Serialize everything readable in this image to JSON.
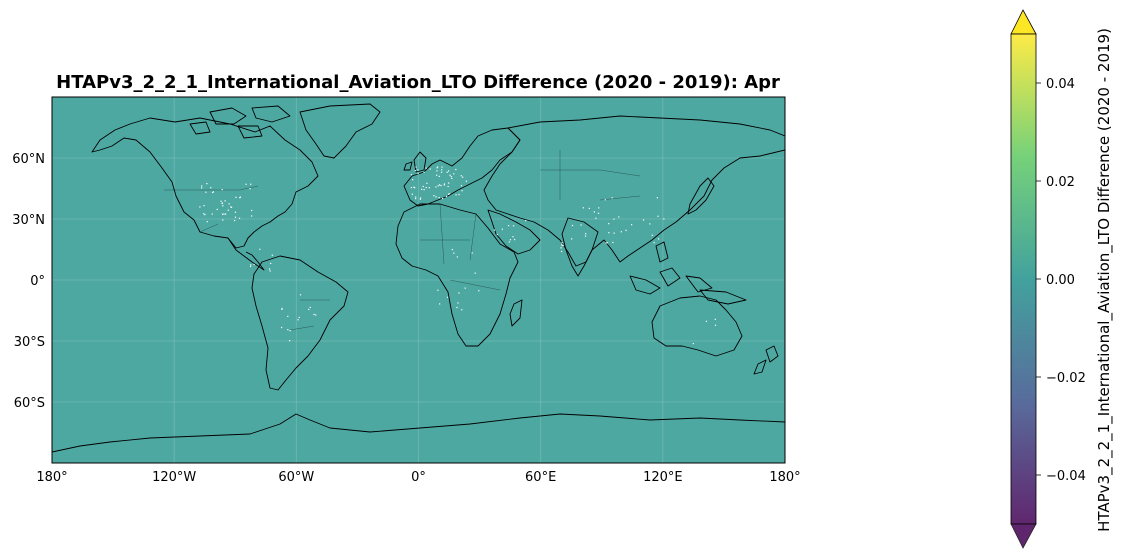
{
  "title": "HTAPv3_2_2_1_International_Aviation_LTO Difference (2020 - 2019): Apr",
  "map": {
    "projection": "PlateCarree",
    "extent": {
      "lon": [
        -180,
        180
      ],
      "lat": [
        -90,
        90
      ]
    },
    "fill_color": "#4ea8a2",
    "coastline_color": "#000000",
    "gridlines": true,
    "x_ticks": [
      "180°",
      "120°W",
      "60°W",
      "0°",
      "60°E",
      "120°E",
      "180°"
    ],
    "x_tick_values": [
      -180,
      -120,
      -60,
      0,
      60,
      120,
      180
    ],
    "y_ticks": [
      "60°N",
      "30°N",
      "0°",
      "30°S",
      "60°S"
    ],
    "y_tick_values": [
      60,
      30,
      0,
      -30,
      -60
    ]
  },
  "colorbar": {
    "label": "HTAPv3_2_2_1_International_Aviation_LTO Difference (2020 - 2019)",
    "ticks": [
      "0.04",
      "0.02",
      "0.00",
      "−0.02",
      "−0.04"
    ],
    "tick_values": [
      0.04,
      0.02,
      0.0,
      -0.02,
      -0.04
    ],
    "range": [
      -0.05,
      0.05
    ],
    "extend": "both",
    "colormap": "viridis",
    "colors": [
      "#440154",
      "#3b528b",
      "#21918c",
      "#5ec962",
      "#fde725"
    ]
  },
  "chart_data": {
    "type": "heatmap",
    "title": "HTAPv3_2_2_1_International_Aviation_LTO Difference (2020 - 2019): Apr",
    "xlabel": "",
    "ylabel": "",
    "x_range": [
      -180,
      180
    ],
    "y_range": [
      -90,
      90
    ],
    "value_range": [
      -0.05,
      0.05
    ],
    "uniform_value": 0.0,
    "colorbar_label": "HTAPv3_2_2_1_International_Aviation_LTO Difference (2020 - 2019)",
    "grid": true
  }
}
